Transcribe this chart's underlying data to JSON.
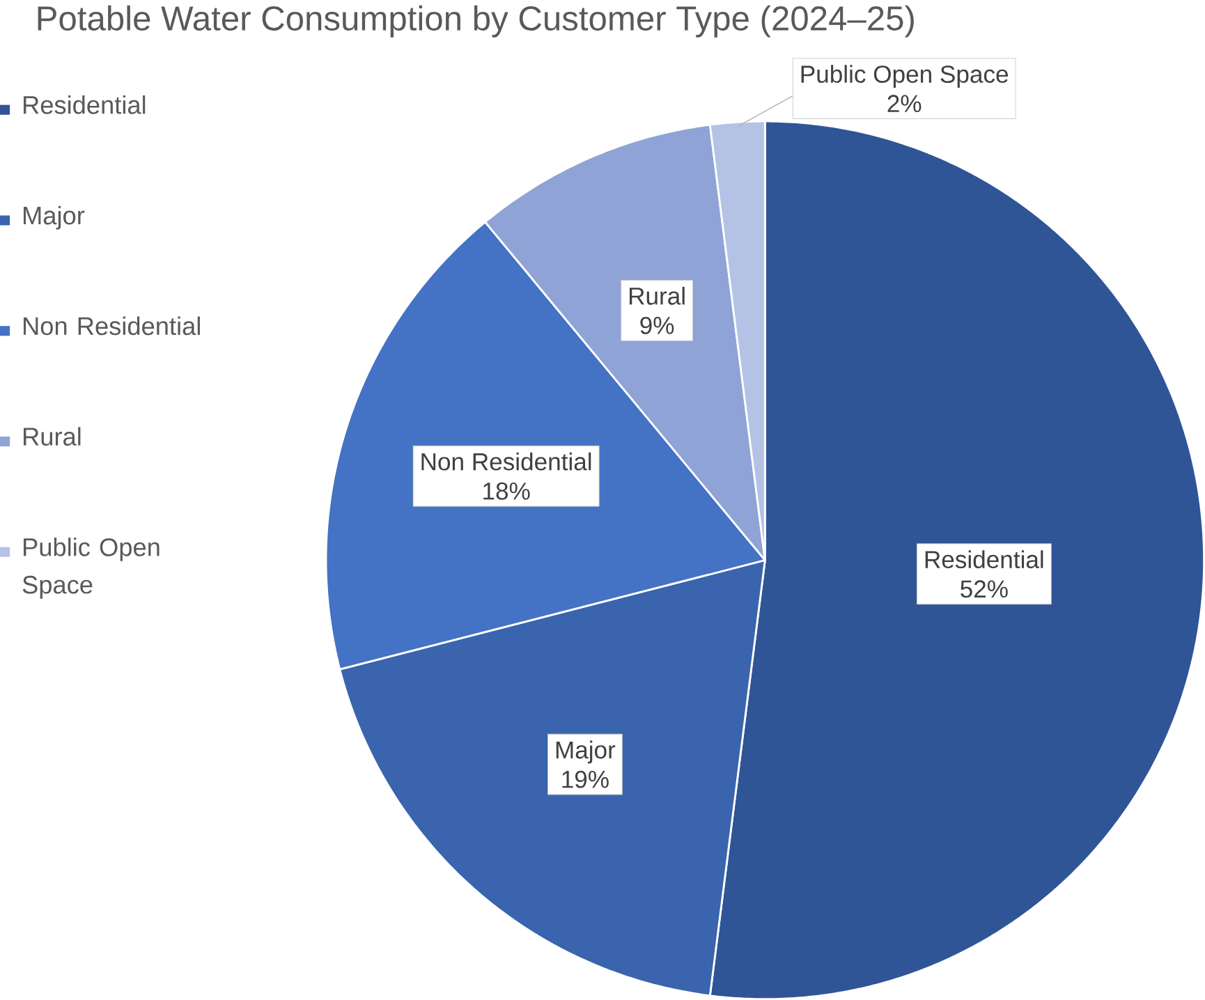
{
  "chart_data": {
    "type": "pie",
    "title": "Potable Water Consumption by Customer Type (2024–25)",
    "categories": [
      "Residential",
      "Major",
      "Non Residential",
      "Rural",
      "Public Open Space"
    ],
    "values": [
      52,
      19,
      18,
      9,
      2
    ],
    "colors": [
      "#2f5597",
      "#3a64ad",
      "#4472c4",
      "#8fa3d6",
      "#b4c2e6"
    ],
    "value_labels": [
      "52%",
      "19%",
      "18%",
      "9%",
      "2%"
    ],
    "legend": "left"
  }
}
